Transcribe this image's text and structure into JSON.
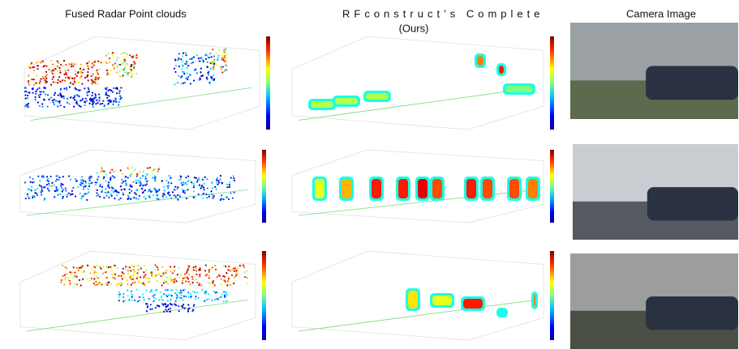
{
  "header": {
    "col1": "Fused Radar Point clouds",
    "col2": "RFconstruct’s Complete",
    "col2_sub": "(Ours)",
    "col3": "Camera Image"
  }
}
